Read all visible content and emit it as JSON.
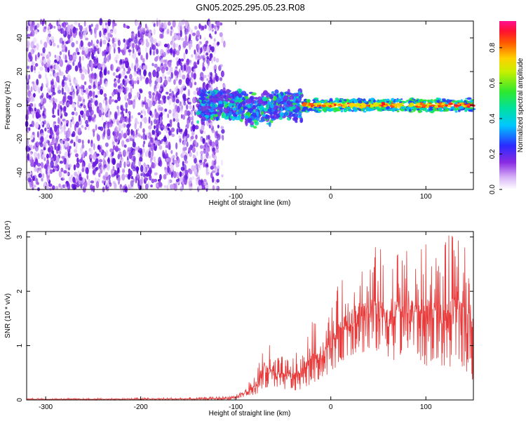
{
  "figure_title": "GN05.2025.295.05.23.R08",
  "chart_data": [
    {
      "type": "heatmap",
      "title": "GN05.2025.295.05.23.R08",
      "xlabel": "Height of straight line (km)",
      "ylabel": "Frequency (Hz)",
      "xlim": [
        -320,
        150
      ],
      "ylim": [
        -50,
        50
      ],
      "xticks": [
        -300,
        -200,
        -100,
        0,
        100
      ],
      "yticks": [
        -40,
        -20,
        0,
        20,
        40
      ],
      "xtick_labels": [
        "-300",
        "-200",
        "-100",
        "0",
        "100"
      ],
      "ytick_labels": [
        "-40",
        "-20",
        "0",
        "20",
        "40"
      ],
      "colorbar": {
        "label": "Normalized spectral amplitude",
        "range": [
          0,
          0.95
        ],
        "ticks": [
          0.0,
          0.2,
          0.4,
          0.6,
          0.8
        ],
        "tick_labels": [
          "0.0",
          "0.2",
          "0.4",
          "0.6",
          "0.8"
        ],
        "colormap": "rainbow (white-violet-blue-cyan-green-yellow-red-magenta)"
      },
      "regions": [
        {
          "x_range": [
            -320,
            -115
          ],
          "freq_range": [
            -50,
            50
          ],
          "amplitude": "0.05-0.2 scattered noise"
        },
        {
          "x_range": [
            -140,
            -30
          ],
          "freq_range": [
            -12,
            10
          ],
          "amplitude": "0.2-0.5 band"
        },
        {
          "x_range": [
            -30,
            150
          ],
          "freq_range": [
            -4,
            4
          ],
          "amplitude": "0.4-0.95 narrow band near 0 Hz"
        }
      ]
    },
    {
      "type": "line",
      "xlabel": "Height of straight line (km)",
      "ylabel": "SNR (10 * v/v)",
      "y_multiplier": "(x10⁴)",
      "xlim": [
        -320,
        150
      ],
      "ylim": [
        0,
        3.1
      ],
      "xticks": [
        -300,
        -200,
        -100,
        0,
        100
      ],
      "yticks": [
        0,
        1,
        2,
        3
      ],
      "xtick_labels": [
        "-300",
        "-200",
        "-100",
        "0",
        "100"
      ],
      "ytick_labels": [
        "0",
        "1",
        "2",
        "3"
      ],
      "series": [
        {
          "name": "SNR",
          "color": "#e83a3a",
          "x": [
            -320,
            -260,
            -200,
            -140,
            -110,
            -100,
            -90,
            -80,
            -70,
            -60,
            -50,
            -40,
            -30,
            -20,
            -10,
            0,
            10,
            20,
            30,
            40,
            50,
            60,
            70,
            80,
            90,
            100,
            110,
            120,
            130,
            140,
            150
          ],
          "envelope_max": [
            0.03,
            0.03,
            0.04,
            0.05,
            0.08,
            0.12,
            0.25,
            0.45,
            1.2,
            0.9,
            0.8,
            0.85,
            0.9,
            1.5,
            1.3,
            1.8,
            2.2,
            2.5,
            2.7,
            2.8,
            2.9,
            2.6,
            3.0,
            2.8,
            2.7,
            2.9,
            2.8,
            3.0,
            3.1,
            2.9,
            2.7
          ],
          "envelope_min": [
            0.0,
            0.0,
            0.0,
            0.0,
            0.0,
            0.01,
            0.05,
            0.1,
            0.15,
            0.15,
            0.2,
            0.15,
            0.2,
            0.3,
            0.4,
            0.5,
            0.7,
            0.8,
            0.9,
            0.8,
            0.9,
            0.8,
            0.7,
            0.9,
            0.8,
            0.6,
            0.8,
            0.5,
            0.7,
            0.6,
            0.3
          ]
        }
      ]
    }
  ]
}
